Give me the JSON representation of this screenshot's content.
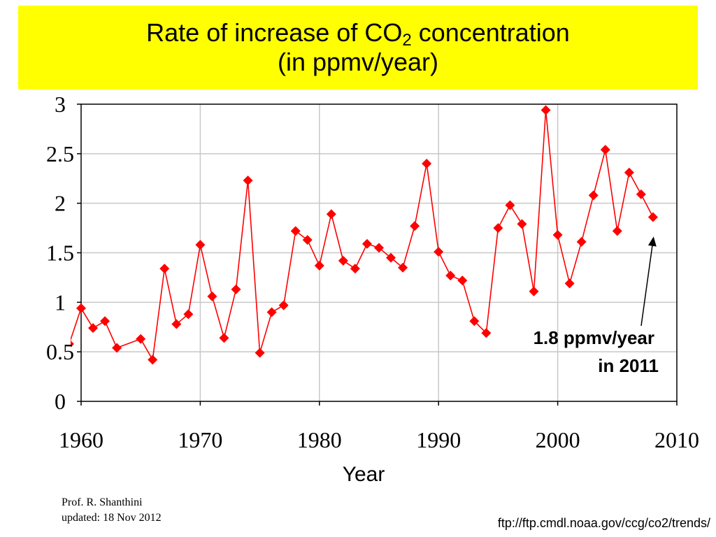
{
  "slide": {
    "title_line1_pre": "Rate of increase of CO",
    "title_line1_sub": "2",
    "title_line1_post": " concentration",
    "title_line2": "(in ppmv/year)",
    "credit_name": "Prof. R. Shanthini",
    "credit_updated": "updated: 18 Nov 2012",
    "source": "ftp://ftp.cmdl.noaa.gov/ccg/co2/trends/",
    "title_bg_color": "#ffff00"
  },
  "chart_data": {
    "type": "line",
    "title": "",
    "xlabel": "Year",
    "ylabel": "",
    "xlim": [
      1960,
      2010
    ],
    "ylim": [
      0,
      3
    ],
    "xticks": [
      1960,
      1970,
      1980,
      1990,
      2000,
      2010
    ],
    "yticks": [
      0,
      0.5,
      1,
      1.5,
      2,
      2.5,
      3
    ],
    "xtick_labels": [
      "1960",
      "1970",
      "1980",
      "1990",
      "2000",
      "2010"
    ],
    "ytick_labels": [
      "0",
      "0.5",
      "1",
      "1.5",
      "2",
      "2.5",
      "3"
    ],
    "grid": true,
    "series_color": "#ff0000",
    "marker": "diamond",
    "series": [
      {
        "x": [
          1959,
          1960,
          1961,
          1962,
          1963,
          1965,
          1966,
          1967,
          1968,
          1969,
          1970,
          1971,
          1972,
          1973,
          1974,
          1975,
          1976,
          1977,
          1978,
          1979,
          1980,
          1981,
          1982,
          1983,
          1984,
          1985,
          1986,
          1987,
          1988,
          1989,
          1990,
          1991,
          1992,
          1993,
          1994,
          1995,
          1996,
          1997,
          1998,
          1999,
          2000,
          2001,
          2002,
          2003,
          2004,
          2005,
          2006,
          2007,
          2008
        ],
        "y": [
          0.58,
          0.94,
          0.74,
          0.81,
          0.54,
          0.63,
          0.42,
          1.34,
          0.78,
          0.88,
          1.58,
          1.06,
          0.64,
          1.13,
          2.23,
          0.49,
          0.9,
          0.97,
          1.72,
          1.63,
          1.37,
          1.89,
          1.42,
          1.34,
          1.59,
          1.55,
          1.45,
          1.35,
          1.77,
          2.4,
          1.51,
          1.27,
          1.22,
          0.81,
          0.69,
          1.75,
          1.98,
          1.79,
          1.11,
          2.94,
          1.68,
          1.19,
          1.61,
          2.08,
          2.54,
          1.72,
          2.31,
          2.09,
          1.86
        ]
      }
    ],
    "annotation": {
      "line1": "1.8 ppmv/year",
      "line2": "in 2011",
      "arrow_target": [
        2008,
        1.72
      ]
    }
  }
}
